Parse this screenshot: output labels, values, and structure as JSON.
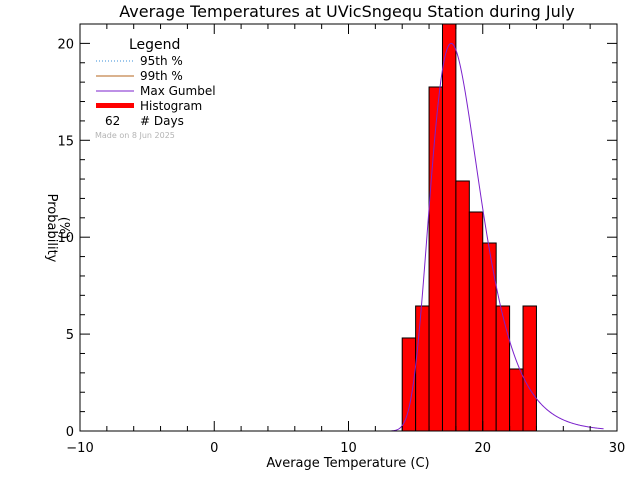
{
  "chart_data": {
    "type": "bar",
    "title": "Average Temperatures at UVicSngequ Station during July",
    "xlabel": "Average Temperature (C)",
    "ylabel_line1": "Probability",
    "ylabel_line2": "(%)",
    "xlim": [
      -10,
      30
    ],
    "ylim": [
      0,
      21
    ],
    "x_ticks": [
      -10,
      0,
      10,
      20,
      30
    ],
    "y_ticks": [
      0,
      5,
      10,
      15,
      20
    ],
    "histogram": {
      "bin_width": 1,
      "bins": [
        {
          "x0": 14,
          "value": 4.8
        },
        {
          "x0": 15,
          "value": 6.45
        },
        {
          "x0": 16,
          "value": 17.75
        },
        {
          "x0": 17,
          "value": 21.0
        },
        {
          "x0": 18,
          "value": 12.9
        },
        {
          "x0": 19,
          "value": 11.3
        },
        {
          "x0": 20,
          "value": 9.7
        },
        {
          "x0": 21,
          "value": 6.45
        },
        {
          "x0": 22,
          "value": 3.2
        },
        {
          "x0": 23,
          "value": 6.45
        }
      ]
    },
    "gumbel": {
      "mode": 17.65,
      "scale": 1.84,
      "peak": 20.0
    },
    "legend": {
      "title": "Legend",
      "placement": "top-left",
      "entries": [
        {
          "label": "95th %",
          "color": "#3a8fd8",
          "style": "dotted"
        },
        {
          "label": "99th %",
          "color": "#b5651d",
          "style": "solid"
        },
        {
          "label": "Max Gumbel",
          "color": "#7b22cc",
          "style": "solid"
        },
        {
          "label": "Histogram",
          "color": "#ff0000",
          "style": "thick"
        }
      ],
      "days_count": "62",
      "days_label": "# Days"
    },
    "made_on": "Made on 8 Jun 2025",
    "colors": {
      "histogram_fill": "#ff0000",
      "gumbel": "#7b22cc",
      "axis": "#000000",
      "made_on": "#b4b4b4"
    }
  }
}
